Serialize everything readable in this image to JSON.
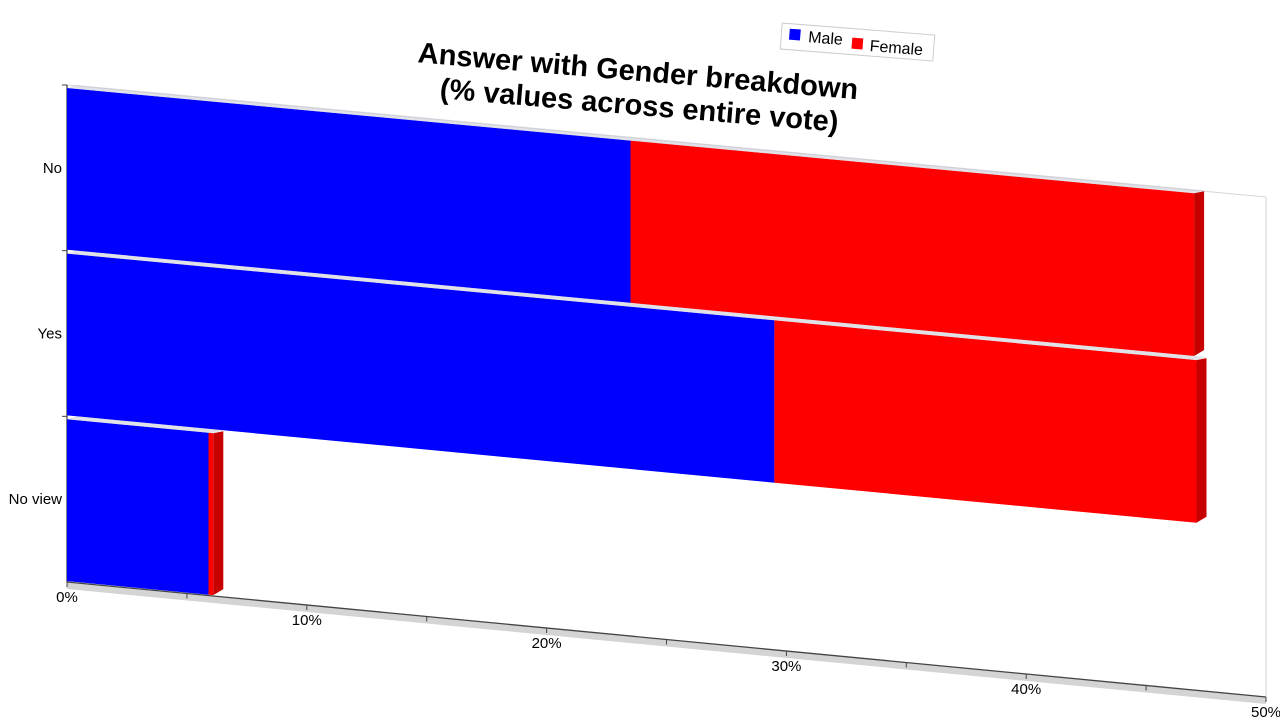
{
  "chart_data": {
    "type": "bar",
    "orientation": "horizontal",
    "stacked": true,
    "three_d": true,
    "title_lines": [
      "Answer with Gender breakdown",
      "(% values across entire vote)"
    ],
    "categories": [
      "No",
      "Yes",
      "No view"
    ],
    "series": [
      {
        "name": "Male",
        "color": "#0000ff",
        "values": [
          23.5,
          29.5,
          5.9
        ]
      },
      {
        "name": "Female",
        "color": "#ff0000",
        "values": [
          23.5,
          17.6,
          0.2
        ]
      }
    ],
    "xlim": [
      0,
      50
    ],
    "x_ticks": [
      0,
      10,
      20,
      30,
      40,
      50
    ],
    "x_tick_labels": [
      "0%",
      "10%",
      "20%",
      "30%",
      "40%",
      "50%"
    ],
    "legend_position": "top-right",
    "grid": false
  }
}
